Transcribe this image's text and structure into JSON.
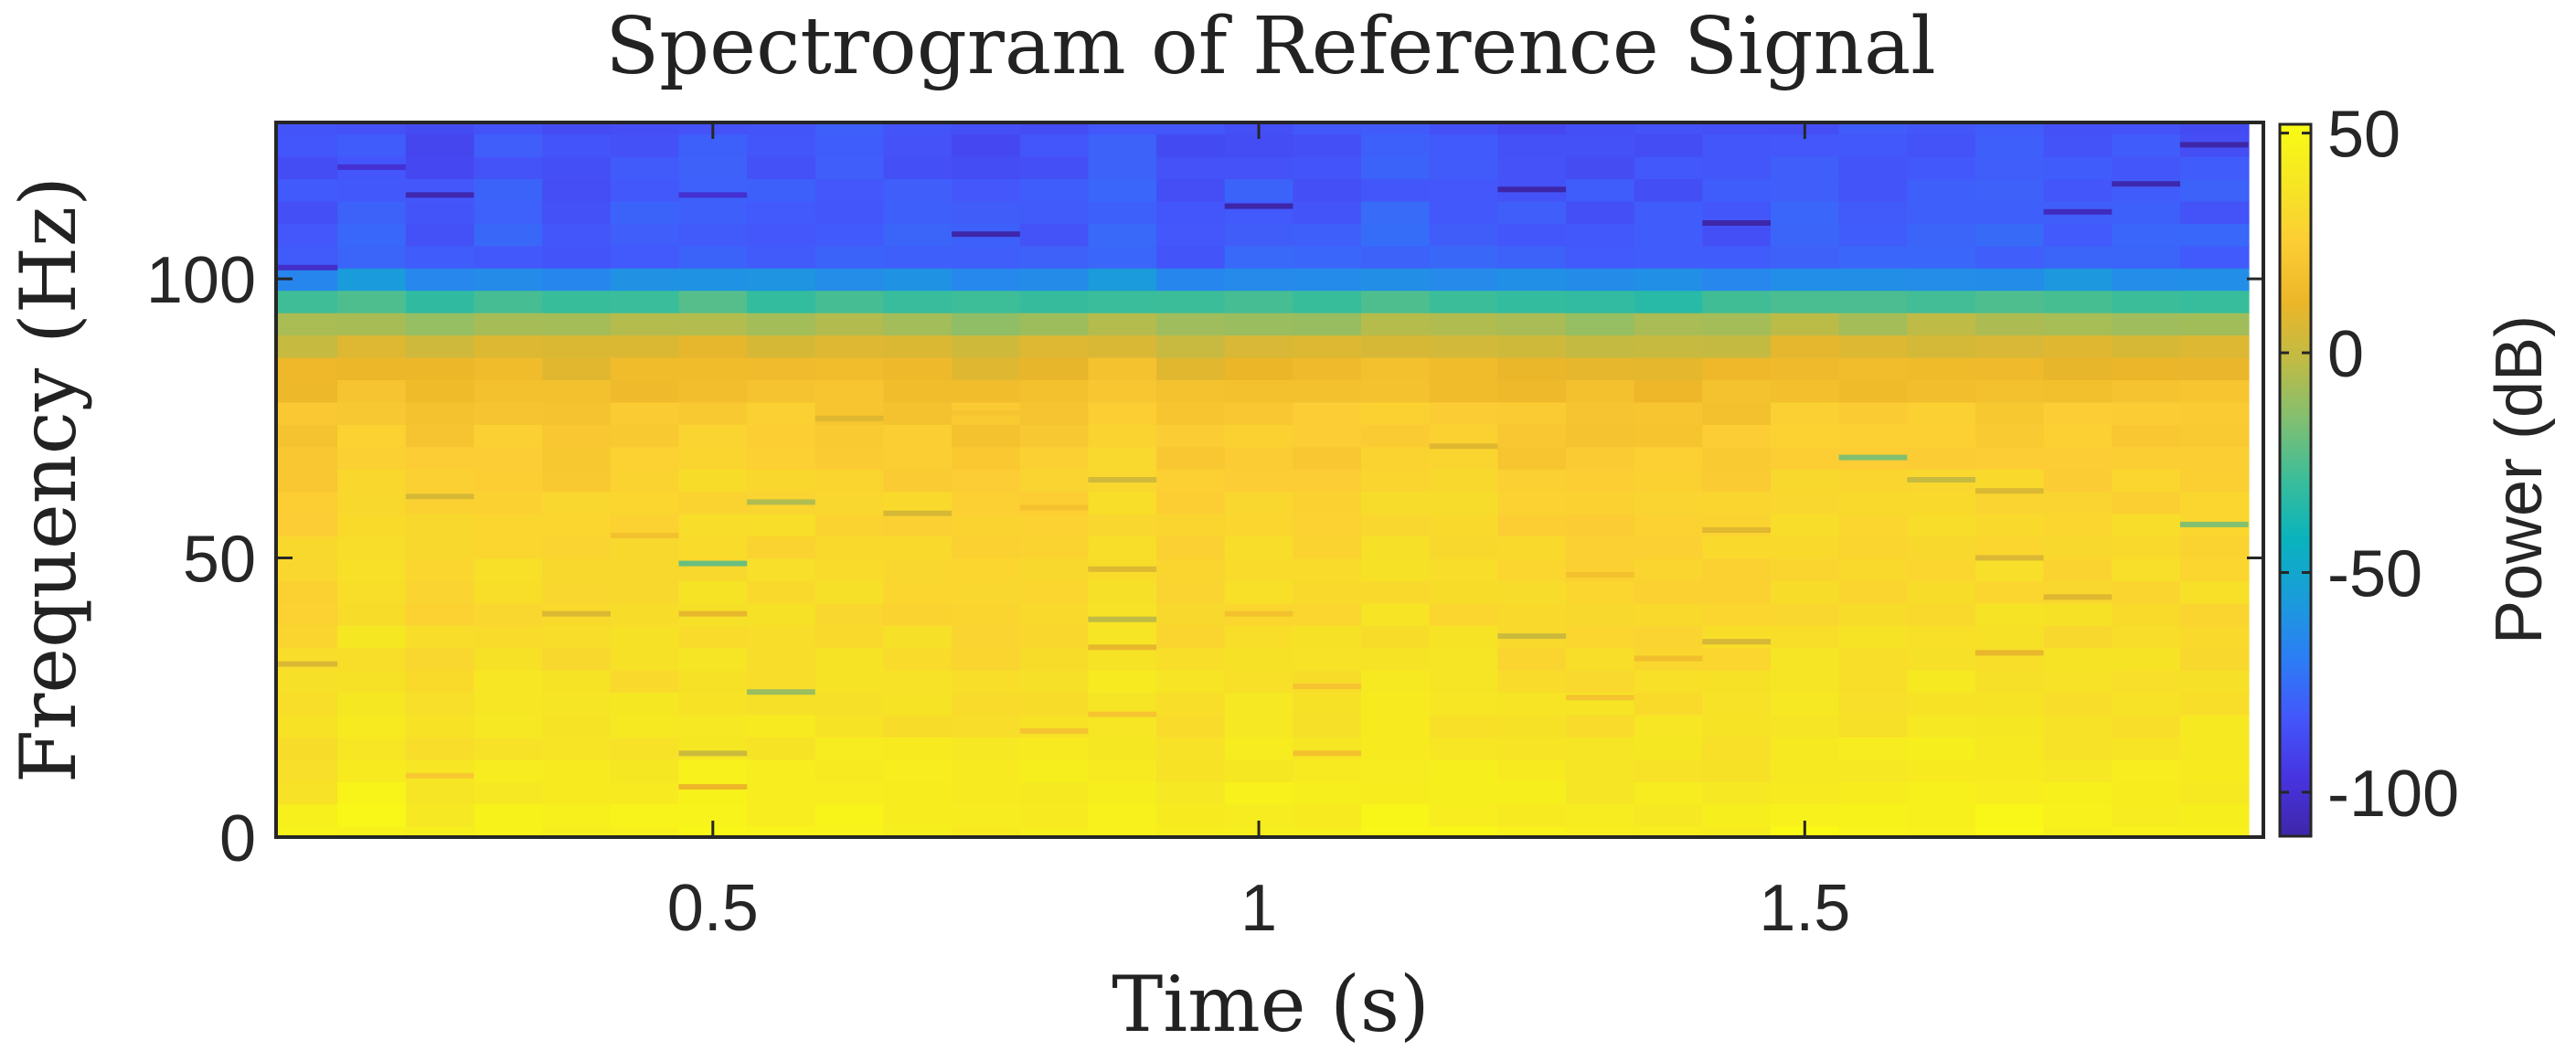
{
  "chart_data": {
    "type": "heatmap",
    "title": "Spectrogram of Reference Signal",
    "xlabel": "Time (s)",
    "ylabel": "Frequency (Hz)",
    "xlim": [
      0.1,
      1.92
    ],
    "ylim": [
      0,
      128
    ],
    "x_ticks": [
      0.5,
      1,
      1.5
    ],
    "x_tick_labels": [
      "0.5",
      "1",
      "1.5"
    ],
    "y_ticks": [
      0,
      50,
      100
    ],
    "y_tick_labels": [
      "0",
      "50",
      "100"
    ],
    "colorbar": {
      "label": "Power (dB)",
      "limits": [
        -110,
        52
      ],
      "ticks": [
        50,
        0,
        -50,
        -100
      ],
      "tick_labels": [
        "50",
        "0",
        "-50",
        "-100"
      ],
      "colormap": "parula",
      "stops": [
        "#3e26a8",
        "#4734e1",
        "#4357fb",
        "#2c7ef5",
        "#1a9cda",
        "#09b3bd",
        "#3abd9a",
        "#80bf72",
        "#bfbb45",
        "#ecb629",
        "#fccd34",
        "#f6e624",
        "#f9fb14"
      ]
    },
    "time_bins": 29,
    "time_start": 0.125,
    "time_step": 0.0625,
    "frequency_bins": 33,
    "frequency_step": 4,
    "power_profile_db": [
      {
        "frequency": 0,
        "power": 46
      },
      {
        "frequency": 8,
        "power": 42
      },
      {
        "frequency": 20,
        "power": 37
      },
      {
        "frequency": 40,
        "power": 32
      },
      {
        "frequency": 60,
        "power": 29
      },
      {
        "frequency": 76,
        "power": 22
      },
      {
        "frequency": 86,
        "power": 10
      },
      {
        "frequency": 93,
        "power": -10
      },
      {
        "frequency": 97,
        "power": -35
      },
      {
        "frequency": 100,
        "power": -62
      },
      {
        "frequency": 104,
        "power": -80
      },
      {
        "frequency": 128,
        "power": -85
      }
    ],
    "lines": [
      {
        "time": 0.125,
        "frequency": 31,
        "power": 6
      },
      {
        "time": 0.125,
        "frequency": 102,
        "power": -102
      },
      {
        "time": 0.1875,
        "frequency": 120,
        "power": -100
      },
      {
        "time": 0.25,
        "frequency": 61,
        "power": 5
      },
      {
        "time": 0.25,
        "frequency": 115,
        "power": -108
      },
      {
        "time": 0.25,
        "frequency": 11,
        "power": 22
      },
      {
        "time": 0.375,
        "frequency": 40,
        "power": 6
      },
      {
        "time": 0.4375,
        "frequency": 54,
        "power": 18
      },
      {
        "time": 0.5,
        "frequency": 49,
        "power": -20
      },
      {
        "time": 0.5,
        "frequency": 40,
        "power": 10
      },
      {
        "time": 0.5,
        "frequency": 15,
        "power": 2
      },
      {
        "time": 0.5,
        "frequency": 9,
        "power": 12
      },
      {
        "time": 0.5,
        "frequency": 115,
        "power": -100
      },
      {
        "time": 0.5625,
        "frequency": 60,
        "power": -5
      },
      {
        "time": 0.5625,
        "frequency": 26,
        "power": -10
      },
      {
        "time": 0.625,
        "frequency": 75,
        "power": 8
      },
      {
        "time": 0.6875,
        "frequency": 58,
        "power": 5
      },
      {
        "time": 0.75,
        "frequency": 108,
        "power": -110
      },
      {
        "time": 0.75,
        "frequency": 76,
        "power": 20
      },
      {
        "time": 0.8125,
        "frequency": 59,
        "power": 18
      },
      {
        "time": 0.8125,
        "frequency": 19,
        "power": 20
      },
      {
        "time": 0.875,
        "frequency": 64,
        "power": 3
      },
      {
        "time": 0.875,
        "frequency": 48,
        "power": 7
      },
      {
        "time": 0.875,
        "frequency": 39,
        "power": -2
      },
      {
        "time": 0.875,
        "frequency": 34,
        "power": 10
      },
      {
        "time": 0.875,
        "frequency": 22,
        "power": 20
      },
      {
        "time": 1.0,
        "frequency": 113,
        "power": -110
      },
      {
        "time": 1.0,
        "frequency": 40,
        "power": 18
      },
      {
        "time": 1.0625,
        "frequency": 27,
        "power": 20
      },
      {
        "time": 1.0625,
        "frequency": 15,
        "power": 18
      },
      {
        "time": 1.1875,
        "frequency": 70,
        "power": 8
      },
      {
        "time": 1.25,
        "frequency": 116,
        "power": -110
      },
      {
        "time": 1.25,
        "frequency": 36,
        "power": 2
      },
      {
        "time": 1.3125,
        "frequency": 47,
        "power": 18
      },
      {
        "time": 1.3125,
        "frequency": 25,
        "power": 20
      },
      {
        "time": 1.375,
        "frequency": 32,
        "power": 16
      },
      {
        "time": 1.4375,
        "frequency": 110,
        "power": -112
      },
      {
        "time": 1.4375,
        "frequency": 55,
        "power": 8
      },
      {
        "time": 1.4375,
        "frequency": 35,
        "power": 5
      },
      {
        "time": 1.5625,
        "frequency": 68,
        "power": -15
      },
      {
        "time": 1.625,
        "frequency": 64,
        "power": 0
      },
      {
        "time": 1.6875,
        "frequency": 62,
        "power": 6
      },
      {
        "time": 1.6875,
        "frequency": 50,
        "power": 6
      },
      {
        "time": 1.6875,
        "frequency": 33,
        "power": 10
      },
      {
        "time": 1.75,
        "frequency": 43,
        "power": 8
      },
      {
        "time": 1.75,
        "frequency": 112,
        "power": -105
      },
      {
        "time": 1.8125,
        "frequency": 117,
        "power": -108
      },
      {
        "time": 1.875,
        "frequency": 56,
        "power": -15
      },
      {
        "time": 1.875,
        "frequency": 124,
        "power": -110
      }
    ],
    "grid": false
  }
}
